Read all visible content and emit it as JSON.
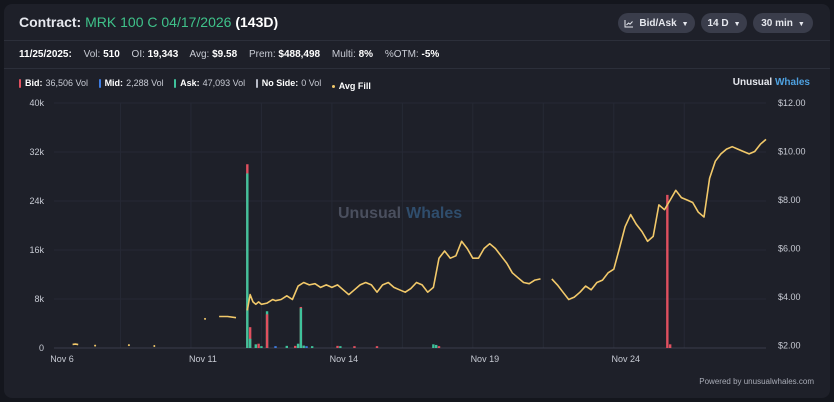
{
  "header": {
    "label": "Contract:",
    "contract": "MRK 100 C 04/17/2026",
    "dte": "(143D)",
    "controls": [
      {
        "label": "Bid/Ask",
        "icon": "chart-icon"
      },
      {
        "label": "14 D"
      },
      {
        "label": "30 min"
      }
    ]
  },
  "stats": {
    "date": "11/25/2025:",
    "vol_label": "Vol:",
    "vol": "510",
    "oi_label": "OI:",
    "oi": "19,343",
    "avg_label": "Avg:",
    "avg": "$9.58",
    "prem_label": "Prem:",
    "prem": "$488,498",
    "multi_label": "Multi:",
    "multi": "8%",
    "otm_label": "%OTM:",
    "otm": "-5%"
  },
  "legend": [
    {
      "key": "bid",
      "label": "Bid:",
      "value": "36,506 Vol",
      "color": "#e0505f"
    },
    {
      "key": "mid",
      "label": "Mid:",
      "value": "2,288 Vol",
      "color": "#3d7be0"
    },
    {
      "key": "ask",
      "label": "Ask:",
      "value": "47,093 Vol",
      "color": "#3fc29b"
    },
    {
      "key": "noside",
      "label": "No Side:",
      "value": "0 Vol",
      "color": "#b8bcc8"
    },
    {
      "key": "avgfill",
      "label": "Avg Fill",
      "value": "",
      "color": "#f2c96a"
    }
  ],
  "brand": {
    "part1": "Unusual",
    "part2": "Whales"
  },
  "watermark": {
    "part1": "Unusual",
    "part2": "Whales"
  },
  "footer": "Powered by unusualwhales.com",
  "chart_data": {
    "type": "bar+line",
    "x_ticks": [
      "Nov 6",
      "Nov 11",
      "Nov 14",
      "Nov 19",
      "Nov 24"
    ],
    "x_tick_index": [
      0,
      50,
      100,
      150,
      200
    ],
    "x_range": [
      -4,
      236
    ],
    "y_left": {
      "ticks": [
        "0",
        "8k",
        "16k",
        "24k",
        "32k",
        "40k"
      ],
      "range": [
        0,
        40000
      ]
    },
    "y_right": {
      "ticks": [
        "$2.00",
        "$4.00",
        "$6.00",
        "$8.00",
        "$10.00",
        "$12.00"
      ],
      "range": [
        1.9,
        12.0
      ]
    },
    "colors": {
      "bid": "#e0505f",
      "mid": "#3d7be0",
      "ask": "#3fc29b",
      "line": "#f2c96a"
    },
    "volume_bars": [
      {
        "i": 70,
        "side": "bid",
        "v": 30000
      },
      {
        "i": 70,
        "side": "ask",
        "v": 28500
      },
      {
        "i": 71,
        "side": "bid",
        "v": 3400
      },
      {
        "i": 71,
        "side": "ask",
        "v": 1500
      },
      {
        "i": 73,
        "side": "ask",
        "v": 600
      },
      {
        "i": 74,
        "side": "bid",
        "v": 700
      },
      {
        "i": 75,
        "side": "ask",
        "v": 300
      },
      {
        "i": 77,
        "side": "ask",
        "v": 6000
      },
      {
        "i": 77,
        "side": "bid",
        "v": 5500
      },
      {
        "i": 80,
        "side": "mid",
        "v": 300
      },
      {
        "i": 84,
        "side": "ask",
        "v": 350
      },
      {
        "i": 87,
        "side": "bid",
        "v": 350
      },
      {
        "i": 88,
        "side": "ask",
        "v": 700
      },
      {
        "i": 89,
        "side": "ask",
        "v": 6500
      },
      {
        "i": 89,
        "side": "bid",
        "v": 6700
      },
      {
        "i": 90,
        "side": "ask",
        "v": 400
      },
      {
        "i": 91,
        "side": "mid",
        "v": 300
      },
      {
        "i": 93,
        "side": "ask",
        "v": 300
      },
      {
        "i": 102,
        "side": "bid",
        "v": 350
      },
      {
        "i": 103,
        "side": "ask",
        "v": 300
      },
      {
        "i": 108,
        "side": "bid",
        "v": 300
      },
      {
        "i": 116,
        "side": "bid",
        "v": 300
      },
      {
        "i": 136,
        "side": "ask",
        "v": 600
      },
      {
        "i": 137,
        "side": "ask",
        "v": 500
      },
      {
        "i": 138,
        "side": "bid",
        "v": 300
      },
      {
        "i": 219,
        "side": "bid",
        "v": 25000
      },
      {
        "i": 220,
        "side": "bid",
        "v": 600
      }
    ],
    "avg_fill": [
      {
        "i": 8,
        "y": 2.05
      },
      {
        "i": 9,
        "y": 2.06
      },
      {
        "i": 10,
        "y": 2.04
      },
      {
        "i": 16,
        "y": 2.0
      },
      {
        "i": 28,
        "y": 2.02
      },
      {
        "i": 37,
        "y": 1.98
      },
      {
        "i": 55,
        "y": 3.1
      },
      {
        "i": 60,
        "y": 3.2
      },
      {
        "i": 63,
        "y": 3.2
      },
      {
        "i": 66,
        "y": 3.15
      },
      {
        "i": 70,
        "y": 3.45
      },
      {
        "i": 71,
        "y": 4.1
      },
      {
        "i": 72,
        "y": 3.8
      },
      {
        "i": 73,
        "y": 3.7
      },
      {
        "i": 74,
        "y": 3.8
      },
      {
        "i": 75,
        "y": 3.7
      },
      {
        "i": 77,
        "y": 3.75
      },
      {
        "i": 79,
        "y": 3.9
      },
      {
        "i": 80,
        "y": 3.85
      },
      {
        "i": 82,
        "y": 3.9
      },
      {
        "i": 84,
        "y": 4.05
      },
      {
        "i": 86,
        "y": 3.9
      },
      {
        "i": 88,
        "y": 4.45
      },
      {
        "i": 90,
        "y": 4.6
      },
      {
        "i": 92,
        "y": 4.5
      },
      {
        "i": 94,
        "y": 4.55
      },
      {
        "i": 96,
        "y": 4.4
      },
      {
        "i": 98,
        "y": 4.5
      },
      {
        "i": 100,
        "y": 4.4
      },
      {
        "i": 102,
        "y": 4.5
      },
      {
        "i": 104,
        "y": 4.3
      },
      {
        "i": 106,
        "y": 4.1
      },
      {
        "i": 108,
        "y": 4.3
      },
      {
        "i": 110,
        "y": 4.5
      },
      {
        "i": 112,
        "y": 4.6
      },
      {
        "i": 114,
        "y": 4.5
      },
      {
        "i": 116,
        "y": 4.2
      },
      {
        "i": 118,
        "y": 4.5
      },
      {
        "i": 120,
        "y": 4.6
      },
      {
        "i": 122,
        "y": 4.4
      },
      {
        "i": 124,
        "y": 4.3
      },
      {
        "i": 126,
        "y": 4.2
      },
      {
        "i": 128,
        "y": 4.35
      },
      {
        "i": 130,
        "y": 4.6
      },
      {
        "i": 132,
        "y": 4.5
      },
      {
        "i": 134,
        "y": 4.2
      },
      {
        "i": 136,
        "y": 4.4
      },
      {
        "i": 138,
        "y": 5.6
      },
      {
        "i": 140,
        "y": 5.9
      },
      {
        "i": 142,
        "y": 5.6
      },
      {
        "i": 144,
        "y": 5.7
      },
      {
        "i": 146,
        "y": 6.3
      },
      {
        "i": 148,
        "y": 6.0
      },
      {
        "i": 150,
        "y": 5.6
      },
      {
        "i": 152,
        "y": 5.6
      },
      {
        "i": 154,
        "y": 6.0
      },
      {
        "i": 156,
        "y": 6.2
      },
      {
        "i": 158,
        "y": 6.0
      },
      {
        "i": 160,
        "y": 5.7
      },
      {
        "i": 162,
        "y": 5.4
      },
      {
        "i": 164,
        "y": 5.0
      },
      {
        "i": 166,
        "y": 4.8
      },
      {
        "i": 168,
        "y": 4.6
      },
      {
        "i": 170,
        "y": 4.55
      },
      {
        "i": 172,
        "y": 4.7
      },
      {
        "i": 174,
        "y": 4.75
      },
      {
        "i": 178,
        "y": 4.75
      },
      {
        "i": 180,
        "y": 4.5
      },
      {
        "i": 182,
        "y": 4.2
      },
      {
        "i": 184,
        "y": 3.9
      },
      {
        "i": 186,
        "y": 4.0
      },
      {
        "i": 188,
        "y": 4.2
      },
      {
        "i": 190,
        "y": 4.45
      },
      {
        "i": 192,
        "y": 4.3
      },
      {
        "i": 194,
        "y": 4.6
      },
      {
        "i": 196,
        "y": 4.7
      },
      {
        "i": 198,
        "y": 5.0
      },
      {
        "i": 200,
        "y": 5.15
      },
      {
        "i": 202,
        "y": 6.0
      },
      {
        "i": 204,
        "y": 6.9
      },
      {
        "i": 206,
        "y": 7.4
      },
      {
        "i": 208,
        "y": 7.0
      },
      {
        "i": 210,
        "y": 6.7
      },
      {
        "i": 212,
        "y": 6.3
      },
      {
        "i": 214,
        "y": 6.5
      },
      {
        "i": 216,
        "y": 7.8
      },
      {
        "i": 218,
        "y": 7.6
      },
      {
        "i": 220,
        "y": 8.0
      },
      {
        "i": 222,
        "y": 8.4
      },
      {
        "i": 224,
        "y": 8.1
      },
      {
        "i": 226,
        "y": 8.0
      },
      {
        "i": 228,
        "y": 7.9
      },
      {
        "i": 230,
        "y": 7.5
      },
      {
        "i": 232,
        "y": 7.3
      },
      {
        "i": 234,
        "y": 8.9
      },
      {
        "i": 236,
        "y": 9.6
      },
      {
        "i": 238,
        "y": 9.9
      },
      {
        "i": 240,
        "y": 10.1
      },
      {
        "i": 242,
        "y": 10.2
      },
      {
        "i": 244,
        "y": 10.1
      },
      {
        "i": 246,
        "y": 10.0
      },
      {
        "i": 248,
        "y": 9.9
      },
      {
        "i": 250,
        "y": 10.0
      },
      {
        "i": 252,
        "y": 10.3
      },
      {
        "i": 254,
        "y": 10.5
      }
    ]
  }
}
